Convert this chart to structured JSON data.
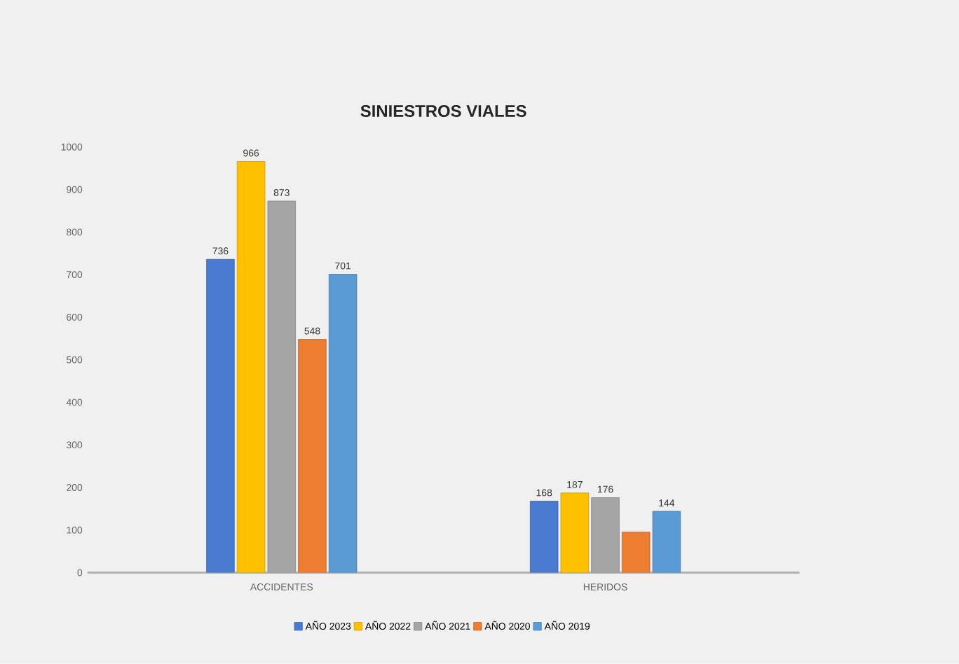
{
  "chart_data": {
    "type": "bar",
    "title": "SINIESTROS VIALES",
    "categories": [
      "ACCIDENTES",
      "HERIDOS"
    ],
    "series": [
      {
        "name": "AÑO 2023",
        "color": "#4a7bd0",
        "values": [
          736,
          168
        ],
        "value_labels": [
          "736",
          "168"
        ]
      },
      {
        "name": "AÑO 2022",
        "color": "#ffc000",
        "values": [
          966,
          187
        ],
        "value_labels": [
          "966",
          "187"
        ]
      },
      {
        "name": "AÑO 2021",
        "color": "#a5a5a5",
        "values": [
          873,
          176
        ],
        "value_labels": [
          "873",
          "176"
        ]
      },
      {
        "name": "AÑO 2020",
        "color": "#ed7d31",
        "values": [
          548,
          95
        ],
        "value_labels": [
          "548",
          null
        ]
      },
      {
        "name": "AÑO 2019",
        "color": "#5b9bd5",
        "values": [
          701,
          144
        ],
        "value_labels": [
          "701",
          "144"
        ]
      }
    ],
    "ylim": [
      0,
      1000
    ],
    "yticks": [
      0,
      100,
      200,
      300,
      400,
      500,
      600,
      700,
      800,
      900,
      1000
    ],
    "legend": "bottom"
  }
}
